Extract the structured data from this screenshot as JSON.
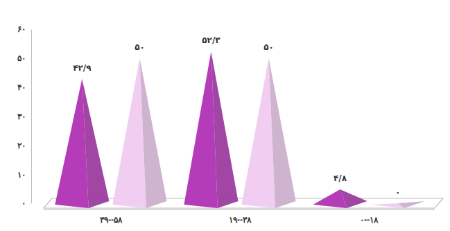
{
  "chart_data": {
    "type": "bar",
    "categories": [
      "۳۹--۵۸",
      "۱۹--۳۸",
      "۰--۱۸"
    ],
    "series": [
      {
        "color": "#b53cb8",
        "values": [
          42.9,
          52.3,
          4.8
        ],
        "value_labels": [
          "۴۲/۹",
          "۵۲/۳",
          "۴/۸"
        ]
      },
      {
        "color": "#f2cdf2",
        "values": [
          50,
          50,
          0
        ],
        "value_labels": [
          "۵۰",
          "۵۰",
          "۰"
        ]
      }
    ],
    "ylim": [
      0,
      60
    ],
    "yticks": [
      {
        "value": 0,
        "label": "۰"
      },
      {
        "value": 10,
        "label": "۱۰"
      },
      {
        "value": 20,
        "label": "۲۰"
      },
      {
        "value": 30,
        "label": "۳۰"
      },
      {
        "value": 40,
        "label": "۴۰"
      },
      {
        "value": 50,
        "label": "۵۰"
      },
      {
        "value": 60,
        "label": "۶۰"
      }
    ],
    "grid": false,
    "data_labels": true
  }
}
